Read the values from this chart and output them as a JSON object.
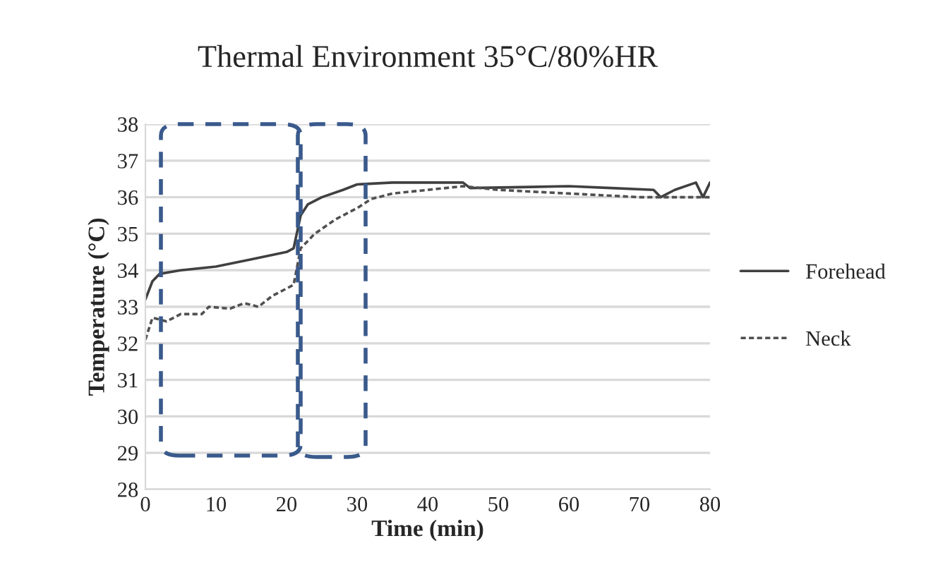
{
  "chart_data": {
    "type": "line",
    "title": "Thermal Environment 35°C/80%HR",
    "xlabel": "Time (min)",
    "ylabel": "Temperature (°C)",
    "xlim": [
      0,
      80
    ],
    "xticks": [
      0,
      10,
      20,
      30,
      40,
      50,
      60,
      70,
      80
    ],
    "ylim": [
      28,
      38
    ],
    "yticks": [
      28,
      29,
      30,
      31,
      32,
      33,
      34,
      35,
      36,
      37,
      38
    ],
    "grid": "y",
    "legend": "right",
    "marker": "none",
    "series": [
      {
        "name": "Forehead",
        "color": "#404040",
        "line_style": "solid",
        "x": [
          0,
          1,
          2,
          5,
          10,
          15,
          20,
          21,
          22,
          23,
          25,
          28,
          30,
          35,
          45,
          46,
          60,
          66,
          72,
          73,
          75,
          78,
          79,
          80
        ],
        "values": [
          33.2,
          33.7,
          33.9,
          34.0,
          34.1,
          34.3,
          34.5,
          34.6,
          35.5,
          35.8,
          36.0,
          36.2,
          36.35,
          36.4,
          36.4,
          36.25,
          36.3,
          36.25,
          36.2,
          36.0,
          36.2,
          36.4,
          36.0,
          36.4
        ]
      },
      {
        "name": "Neck",
        "color": "#505050",
        "line_style": "dotted",
        "x": [
          0,
          1,
          3,
          5,
          8,
          9,
          12,
          14,
          16,
          18,
          20,
          21,
          22,
          24,
          27,
          30,
          32,
          35,
          40,
          45,
          50,
          55,
          60,
          70,
          80
        ],
        "values": [
          32.1,
          32.7,
          32.6,
          32.8,
          32.8,
          33.0,
          32.95,
          33.1,
          33.0,
          33.3,
          33.5,
          33.6,
          34.6,
          35.0,
          35.4,
          35.7,
          35.95,
          36.1,
          36.2,
          36.3,
          36.2,
          36.15,
          36.1,
          36.0,
          36.0
        ]
      }
    ]
  }
}
